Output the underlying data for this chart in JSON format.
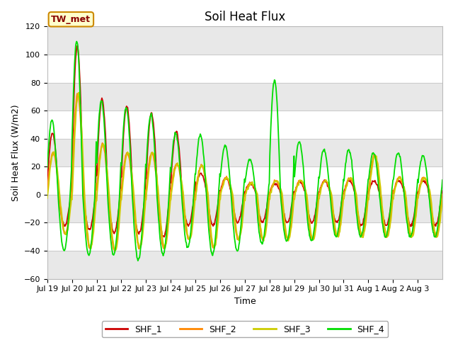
{
  "title": "Soil Heat Flux",
  "xlabel": "Time",
  "ylabel": "Soil Heat Flux (W/m2)",
  "ylim": [
    -60,
    120
  ],
  "yticks": [
    -60,
    -40,
    -20,
    0,
    20,
    40,
    60,
    80,
    100,
    120
  ],
  "annotation": "TW_met",
  "series_labels": [
    "SHF_1",
    "SHF_2",
    "SHF_3",
    "SHF_4"
  ],
  "series_colors": [
    "#cc0000",
    "#ff8800",
    "#cccc00",
    "#00dd00"
  ],
  "background_color": "#ffffff",
  "plot_bg_color": "#ffffff",
  "band_color": "#e8e8e8",
  "grid_color": "#cccccc",
  "day_labels": [
    "Jul 19",
    "Jul 20",
    "Jul 21",
    "Jul 22",
    "Jul 23",
    "Jul 24",
    "Jul 25",
    "Jul 26",
    "Jul 27",
    "Jul 28",
    "Jul 29",
    "Jul 30",
    "Jul 31",
    "Aug 1",
    "Aug 2",
    "Aug 3"
  ],
  "title_fontsize": 12,
  "label_fontsize": 9,
  "tick_fontsize": 8,
  "n_days": 16,
  "n_per_day": 48,
  "amps_pos_1": [
    44,
    106,
    68,
    63,
    58,
    45,
    15,
    12,
    8,
    8,
    9,
    10,
    10,
    10,
    10,
    10
  ],
  "amps_neg_1": [
    22,
    25,
    27,
    28,
    30,
    22,
    22,
    20,
    20,
    20,
    20,
    20,
    22,
    22,
    22,
    22
  ],
  "amps_pos_2": [
    30,
    72,
    36,
    30,
    30,
    22,
    21,
    12,
    8,
    10,
    10,
    10,
    12,
    28,
    12,
    12
  ],
  "amps_neg_2": [
    28,
    38,
    40,
    38,
    38,
    32,
    38,
    32,
    32,
    32,
    32,
    30,
    30,
    30,
    30,
    30
  ],
  "amps_pos_3": [
    30,
    72,
    36,
    30,
    30,
    22,
    21,
    12,
    8,
    10,
    10,
    10,
    12,
    28,
    12,
    12
  ],
  "amps_neg_3": [
    28,
    38,
    40,
    38,
    38,
    32,
    38,
    32,
    32,
    32,
    32,
    30,
    30,
    30,
    30,
    30
  ],
  "amps_pos_4": [
    53,
    110,
    67,
    62,
    57,
    44,
    43,
    35,
    25,
    82,
    38,
    32,
    32,
    30,
    30,
    28
  ],
  "amps_neg_4": [
    40,
    43,
    43,
    47,
    43,
    38,
    43,
    40,
    35,
    33,
    33,
    30,
    30,
    30,
    30,
    30
  ],
  "phase_shifts": [
    0.2,
    0.1,
    -0.1,
    0.35
  ],
  "seed": 42
}
